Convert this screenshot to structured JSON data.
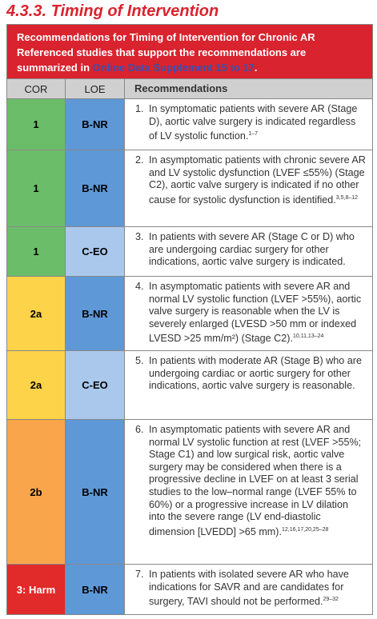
{
  "title": "4.3.3. Timing of Intervention",
  "header": {
    "line1": "Recommendations for Timing of Intervention for Chronic AR",
    "line2": "Referenced studies that support the recommendations are summarized in ",
    "link": "Online Data Supplement 15 to 17",
    "end": "."
  },
  "columns": [
    "COR",
    "LOE",
    "Recommendations"
  ],
  "rows": [
    {
      "cor": "1",
      "loe": "B-NR",
      "number": "1.",
      "text": "In symptomatic patients with severe AR (Stage D), aortic valve surgery is indicated regardless of LV systolic function.",
      "refs": "1–7"
    },
    {
      "cor": "1",
      "loe": "B-NR",
      "number": "2.",
      "text": "In asymptomatic patients with chronic severe AR and LV systolic dysfunction (LVEF ≤55%) (Stage C2), aortic valve surgery is indicated if no other cause for systolic dysfunction is identified.",
      "refs": "3,5,8–12"
    },
    {
      "cor": "1",
      "loe": "C-EO",
      "number": "3.",
      "text": "In patients with severe AR (Stage C or D) who are undergoing cardiac surgery for other indications, aortic valve surgery is indicated."
    },
    {
      "cor": "2a",
      "loe": "B-NR",
      "number": "4.",
      "text": "In asymptomatic patients with severe AR and normal LV systolic function (LVEF >55%), aortic valve surgery is reasonable when the LV is severely enlarged (LVESD >50 mm or indexed LVESD >25 mm/m²) (Stage C2).",
      "refs": "10,11,13–24"
    },
    {
      "cor": "2a",
      "loe": "C-EO",
      "number": "5.",
      "text": "In patients with moderate AR (Stage B) who are undergoing cardiac or aortic surgery for other indications, aortic valve surgery is reasonable."
    },
    {
      "cor": "2b",
      "loe": "B-NR",
      "number": "6.",
      "text": "In asymptomatic patients with severe AR and normal LV systolic function at rest (LVEF >55%; Stage C1) and low surgical risk, aortic valve surgery may be considered when there is a progressive decline in LVEF on at least 3 serial studies to the low–normal range (LVEF 55% to 60%) or a progressive increase in LV dilation into the severe range (LV end-diastolic dimension [LVEDD] >65 mm).",
      "refs": "12,16,17,20,25–28"
    },
    {
      "cor": "3: Harm",
      "loe": "B-NR",
      "number": "7.",
      "text": "In patients with isolated severe AR who have indications for SAVR and are candidates for surgery, TAVI should not be performed.",
      "refs": "29–32"
    }
  ]
}
